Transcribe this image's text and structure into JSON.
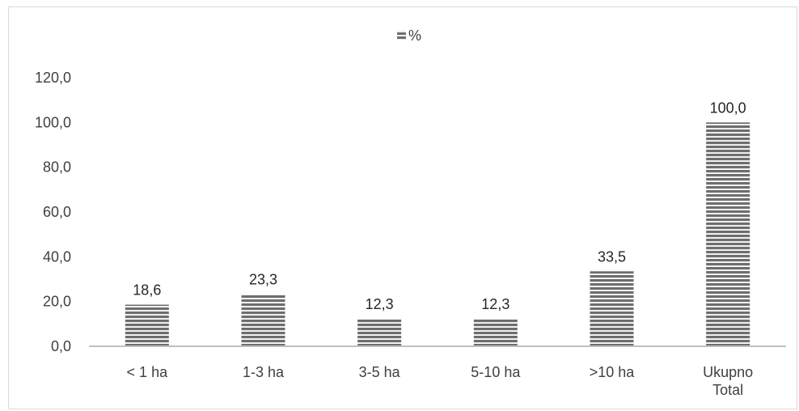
{
  "chart_data": {
    "type": "bar",
    "categories": [
      [
        "< 1 ha"
      ],
      [
        "1-3 ha"
      ],
      [
        "3-5 ha"
      ],
      [
        "5-10 ha"
      ],
      [
        ">10 ha"
      ],
      [
        "Ukupno",
        "Total"
      ]
    ],
    "series": [
      {
        "name": "%",
        "values": [
          18.6,
          23.3,
          12.3,
          12.3,
          33.5,
          100.0
        ]
      }
    ],
    "data_labels": [
      "18,6",
      "23,3",
      "12,3",
      "12,3",
      "33,5",
      "100,0"
    ],
    "y_ticks": [
      "0,0",
      "20,0",
      "40,0",
      "60,0",
      "80,0",
      "100,0",
      "120,0"
    ],
    "ylim": [
      0,
      120
    ],
    "legend_position": "top-center",
    "grid": false,
    "colors": {
      "bar_fill": "#7f7f7f",
      "bar_stripe": "#ffffff",
      "axis": "#bfbfbf",
      "text": "#404040"
    }
  }
}
